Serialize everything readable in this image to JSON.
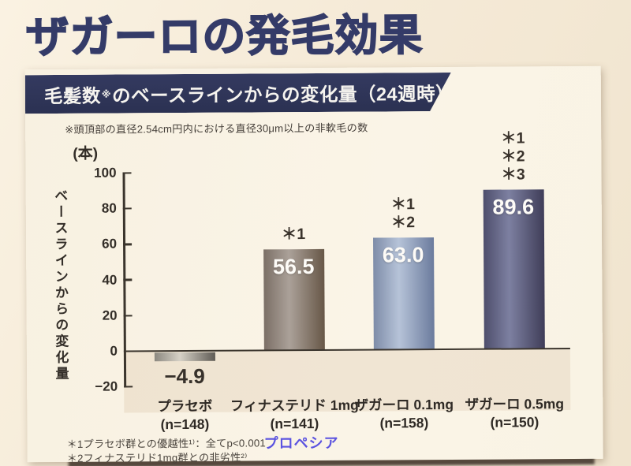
{
  "page": {
    "title": "ザガーロの発毛効果"
  },
  "panel": {
    "header": {
      "pre": "毛髪数",
      "sup": "※",
      "post": "のベースラインからの変化量（24週時）"
    },
    "note": "※頭頂部の直径2.54cm円内における直径30μm以上の非軟毛の数",
    "footnote1": "＊1プラセボ群との優越性¹⁾：全てp<0.001",
    "footnote2": "＊2フィナステリド1mg群との非劣性²⁾",
    "annotation_propecia": "プロペシア"
  },
  "chart_data": {
    "type": "bar",
    "title": "毛髪数のベースラインからの変化量（24週時）",
    "unit_label": "(本)",
    "ylabel": "ベースラインからの変化量",
    "xlabel": "",
    "ylim": [
      -20,
      100
    ],
    "yticks": [
      100,
      80,
      60,
      40,
      20,
      0,
      -20
    ],
    "grid": false,
    "legend": "none",
    "categories": [
      "プラセボ",
      "フィナステリド 1mg",
      "ザガーロ 0.1mg",
      "ザガーロ 0.5mg"
    ],
    "group_sizes": [
      "(n=148)",
      "(n=141)",
      "(n=158)",
      "(n=150)"
    ],
    "values": [
      -4.9,
      56.5,
      63.0,
      89.6
    ],
    "value_labels": [
      "−4.9",
      "56.5",
      "63.0",
      "89.6"
    ],
    "significance_marks": [
      [],
      [
        "＊1"
      ],
      [
        "＊1",
        "＊2"
      ],
      [
        "＊1",
        "＊2",
        "＊3"
      ]
    ],
    "bar_gradients": [
      {
        "left": "#8b8880",
        "mid": "#d6d1c6",
        "right": "#5f5b55"
      },
      {
        "left": "#7b6f66",
        "mid": "#aba199",
        "right": "#675747"
      },
      {
        "left": "#7e8ca8",
        "mid": "#b6c3d8",
        "right": "#6b7b9d"
      },
      {
        "left": "#4e4e6c",
        "mid": "#7d80a1",
        "right": "#3f3d58"
      }
    ],
    "axis_color": "#3b352d",
    "accent_navy": "#2d3355"
  }
}
